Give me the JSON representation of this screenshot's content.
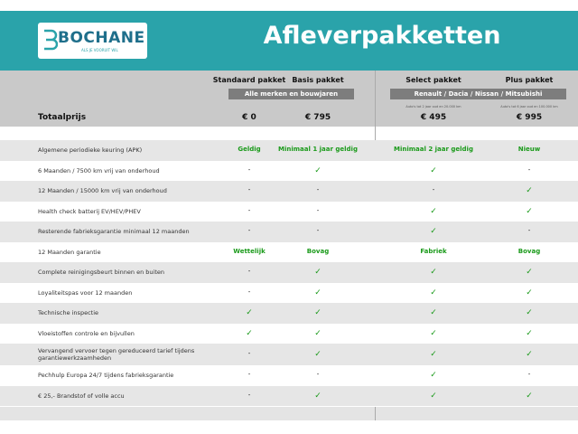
{
  "header": {
    "brand": "BOCHANE",
    "tagline": "ALS JE VOORUIT WIL",
    "title": "Afleverpakketten"
  },
  "packages": [
    "Standaard pakket",
    "Basis pakket",
    "Select pakket",
    "Plus pakket"
  ],
  "groups": [
    "Alle merken en bouwjaren",
    "Renault / Dacia / Nissan / Mitsubishi"
  ],
  "notes": [
    "Auto's tot 2 jaar oud en 20.000 km",
    "Auto's tot 6 jaar oud en 100.000 km"
  ],
  "price_label": "Totaalprijs",
  "prices": [
    "€ 0",
    "€ 795",
    "€ 495",
    "€ 995"
  ],
  "table": {
    "rows": [
      [
        "Algemene periodieke keuring (APK)",
        "Geldig",
        "Minimaal 1 jaar geldig",
        "Minimaal 2 jaar geldig",
        "Nieuw"
      ],
      [
        "6 Maanden / 7500 km vrij van onderhoud",
        "-",
        "✓",
        "✓",
        "-"
      ],
      [
        "12 Maanden / 15000 km vrij van onderhoud",
        "-",
        "-",
        "-",
        "✓"
      ],
      [
        "Health check batterij EV/HEV/PHEV",
        "-",
        "-",
        "✓",
        "✓"
      ],
      [
        "Resterende fabrieksgarantie minimaal 12 maanden",
        "-",
        "-",
        "✓",
        "-"
      ],
      [
        "12 Maanden  garantie",
        "Wettelijk",
        "Bovag",
        "Fabriek",
        "Bovag"
      ],
      [
        "Complete reinigingsbeurt binnen en buiten",
        "-",
        "✓",
        "✓",
        "✓"
      ],
      [
        "Loyaliteitspas voor 12 maanden",
        "-",
        "✓",
        "✓",
        "✓"
      ],
      [
        "Technische inspectie",
        "✓",
        "✓",
        "✓",
        "✓"
      ],
      [
        "Vloeistoffen controle en bijvullen",
        "✓",
        "✓",
        "✓",
        "✓"
      ],
      [
        "Vervangend vervoer tegen gereduceerd tarief tijdens garantiewerkzaamheden",
        "-",
        "✓",
        "✓",
        "✓"
      ],
      [
        "Pechhulp Europa 24/7 tijdens fabrieksgarantie",
        "-",
        "-",
        "✓",
        "-"
      ],
      [
        "€ 25,- Brandstof of volle accu",
        "-",
        "✓",
        "✓",
        "✓"
      ]
    ]
  }
}
